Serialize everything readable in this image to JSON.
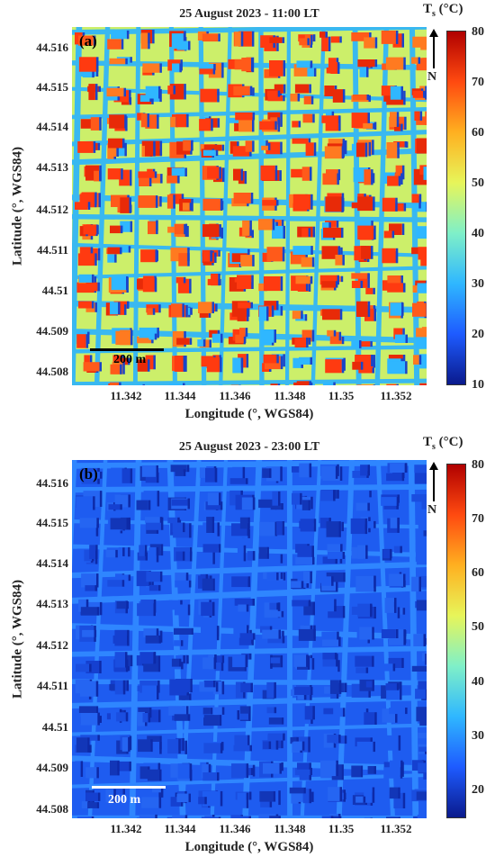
{
  "panels": [
    {
      "id": "a",
      "letter": "(a)",
      "title": "25 August 2023 - 11:00 LT",
      "ylabel": "Latitude (°, WGS84)",
      "xlabel": "Longitude (°, WGS84)",
      "yticks": [
        "44.516",
        "44.515",
        "44.514",
        "44.513",
        "44.512",
        "44.511",
        "44.51",
        "44.509",
        "44.508"
      ],
      "xticks": [
        "11.342",
        "11.344",
        "11.346",
        "11.348",
        "11.35",
        "11.352"
      ],
      "colorbar_label": "T",
      "colorbar_sub": "s",
      "colorbar_unit": "(°C)",
      "colorbar_ticks": [
        "80",
        "70",
        "60",
        "50",
        "40",
        "30",
        "20",
        "10"
      ],
      "colorbar_range": [
        10,
        80
      ],
      "north": "N",
      "scalebar": "200 m",
      "scalebar_color": "#000000",
      "palette": [
        "#0a1a8c",
        "#1e5bff",
        "#2fb7ff",
        "#7ff0c8",
        "#e7f55a",
        "#ffb020",
        "#ff4a10",
        "#b00000"
      ]
    },
    {
      "id": "b",
      "letter": "(b)",
      "title": "25 August 2023 - 23:00 LT",
      "ylabel": "Latitude (°, WGS84)",
      "xlabel": "Longitude (°, WGS84)",
      "yticks": [
        "44.516",
        "44.515",
        "44.514",
        "44.513",
        "44.512",
        "44.511",
        "44.51",
        "44.509",
        "44.508"
      ],
      "xticks": [
        "11.342",
        "11.344",
        "11.346",
        "11.348",
        "11.35",
        "11.352"
      ],
      "colorbar_label": "T",
      "colorbar_sub": "s",
      "colorbar_unit": "(°C)",
      "colorbar_ticks": [
        "80",
        "70",
        "60",
        "50",
        "40",
        "30",
        "20"
      ],
      "colorbar_range": [
        15,
        80
      ],
      "north": "N",
      "scalebar": "200 m",
      "scalebar_color": "#ffffff",
      "palette": [
        "#0a1a8c",
        "#1e5bff",
        "#2fb7ff",
        "#7ff0c8",
        "#e7f55a",
        "#ffb020",
        "#ff4a10",
        "#b00000"
      ]
    }
  ]
}
